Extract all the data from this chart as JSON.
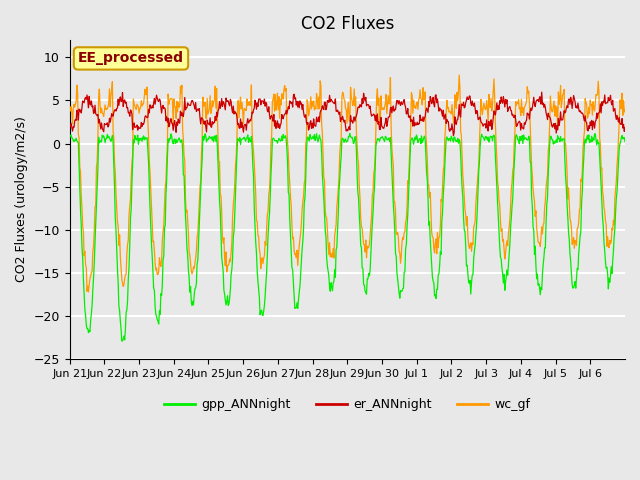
{
  "title": "CO2 Fluxes",
  "ylabel": "CO2 Fluxes (urology/m2/s)",
  "ylim": [
    -25,
    12
  ],
  "yticks": [
    -25,
    -20,
    -15,
    -10,
    -5,
    0,
    5,
    10
  ],
  "background_color": "#e8e8e8",
  "plot_bg_color": "#e8e8e8",
  "grid_color": "#ffffff",
  "annotation_text": "EE_processed",
  "annotation_bg": "#ffff99",
  "annotation_border": "#cc9900",
  "legend_entries": [
    "gpp_ANNnight",
    "er_ANNnight",
    "wc_gf"
  ],
  "line_colors": [
    "#00ee00",
    "#cc0000",
    "#ff9900"
  ],
  "num_days": 16,
  "tick_labels": [
    "Jun 21",
    "Jun 22",
    "Jun 23",
    "Jun 24",
    "Jun 25",
    "Jun 26",
    "Jun 27",
    "Jun 28",
    "Jun 29",
    "Jun 30",
    "Jul 1",
    "Jul 2",
    "Jul 3",
    "Jul 4",
    "Jul 5",
    "Jul 6"
  ],
  "tick_positions": [
    0,
    1,
    2,
    3,
    4,
    5,
    6,
    7,
    8,
    9,
    10,
    11,
    12,
    13,
    14,
    15
  ]
}
